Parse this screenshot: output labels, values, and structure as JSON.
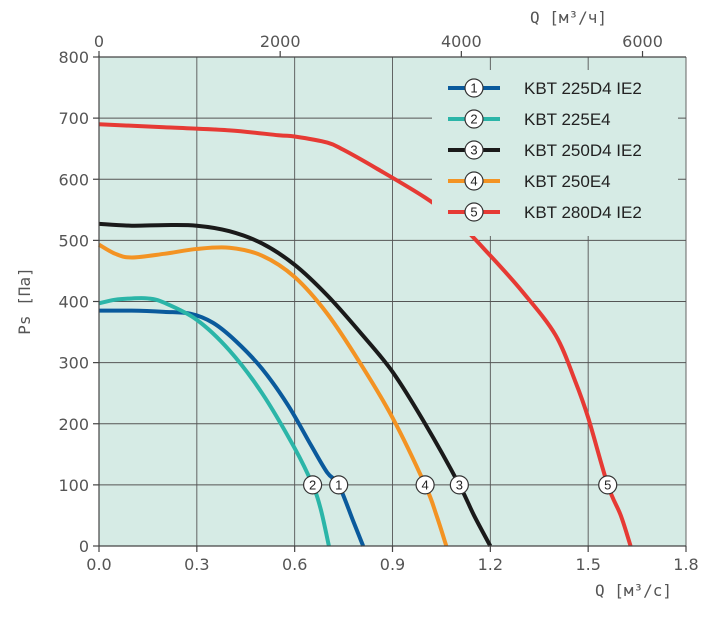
{
  "chart_data": {
    "type": "line",
    "xlabel": "Q [м³/с]",
    "x2label": "Q [м³/ч]",
    "ylabel": "Ps [Па]",
    "xlim": [
      0,
      1.8
    ],
    "x2lim": [
      0,
      6480
    ],
    "ylim": [
      0,
      800
    ],
    "x_ticks": [
      "0.0",
      "0.3",
      "0.6",
      "0.9",
      "1.2",
      "1.5",
      "1.8"
    ],
    "x2_ticks": [
      "0",
      "2000",
      "4000",
      "6000"
    ],
    "y_ticks": [
      "0",
      "100",
      "200",
      "300",
      "400",
      "500",
      "600",
      "700",
      "800"
    ],
    "grid": true,
    "legend_position": "top-right",
    "background_color": "#d6ebe5",
    "series": [
      {
        "id": "1",
        "name": "KBT 225D4 IE2",
        "color": "#0a5a9c",
        "marker_x": 0.735,
        "x": [
          0.0,
          0.1,
          0.2,
          0.28,
          0.35,
          0.42,
          0.5,
          0.58,
          0.65,
          0.7,
          0.735,
          0.78,
          0.81
        ],
        "y": [
          385,
          385,
          383,
          380,
          365,
          335,
          290,
          230,
          165,
          120,
          100,
          40,
          0
        ]
      },
      {
        "id": "2",
        "name": "KBT 225E4",
        "color": "#2bb5a8",
        "marker_x": 0.655,
        "x": [
          0.0,
          0.05,
          0.1,
          0.15,
          0.2,
          0.3,
          0.4,
          0.5,
          0.6,
          0.655,
          0.68,
          0.705
        ],
        "y": [
          397,
          403,
          405,
          405,
          398,
          370,
          320,
          250,
          160,
          100,
          60,
          0
        ]
      },
      {
        "id": "3",
        "name": "KBT 250D4 IE2",
        "color": "#1a1a1a",
        "marker_x": 1.105,
        "x": [
          0.0,
          0.1,
          0.2,
          0.3,
          0.4,
          0.5,
          0.6,
          0.7,
          0.8,
          0.9,
          1.0,
          1.105,
          1.15,
          1.2
        ],
        "y": [
          527,
          524,
          525,
          524,
          515,
          495,
          460,
          410,
          350,
          285,
          200,
          100,
          50,
          0
        ]
      },
      {
        "id": "4",
        "name": "KBT 250E4",
        "color": "#f39323",
        "marker_x": 1.0,
        "x": [
          0.0,
          0.05,
          0.1,
          0.2,
          0.3,
          0.4,
          0.5,
          0.6,
          0.7,
          0.8,
          0.9,
          1.0,
          1.035,
          1.065
        ],
        "y": [
          493,
          478,
          472,
          478,
          486,
          488,
          475,
          440,
          380,
          300,
          210,
          100,
          50,
          0
        ]
      },
      {
        "id": "5",
        "name": "KBT 280D4 IE2",
        "color": "#e63a34",
        "marker_x": 1.56,
        "x": [
          0.0,
          0.2,
          0.4,
          0.55,
          0.6,
          0.7,
          0.75,
          0.85,
          1.0,
          1.1,
          1.2,
          1.3,
          1.4,
          1.46,
          1.5,
          1.56,
          1.6,
          1.63
        ],
        "y": [
          690,
          685,
          680,
          672,
          670,
          660,
          648,
          618,
          570,
          530,
          475,
          415,
          345,
          270,
          210,
          100,
          50,
          0
        ]
      }
    ]
  }
}
